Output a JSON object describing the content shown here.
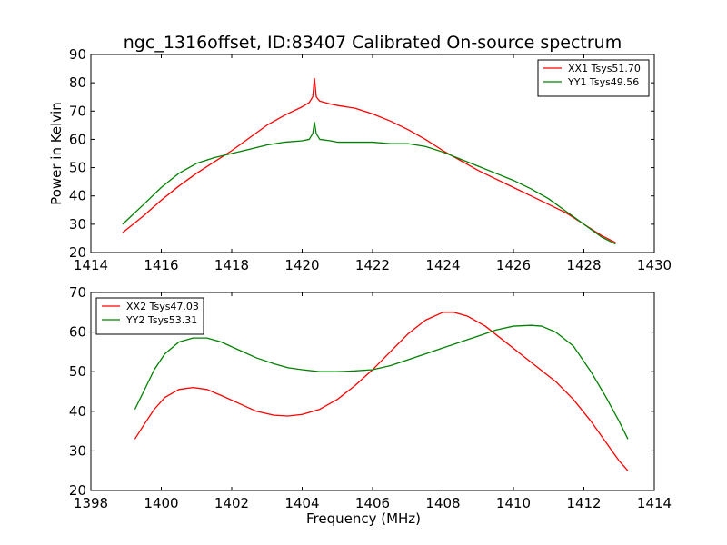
{
  "title": "ngc_1316offset, ID:83407 Calibrated On-source spectrum",
  "chart_data": [
    {
      "type": "line",
      "ylabel": "Power in Kelvin",
      "xlabel": "",
      "xlim": [
        1414,
        1430
      ],
      "ylim": [
        20,
        90
      ],
      "xticks": [
        1414,
        1416,
        1418,
        1420,
        1422,
        1424,
        1426,
        1428,
        1430
      ],
      "yticks": [
        20,
        30,
        40,
        50,
        60,
        70,
        80,
        90
      ],
      "legend_position": "top-right",
      "grid": false,
      "series": [
        {
          "name": "XX1 Tsys51.70",
          "color": "#ff0000",
          "x": [
            1414.9,
            1415.5,
            1416.0,
            1416.5,
            1417.0,
            1417.5,
            1418.0,
            1418.5,
            1419.0,
            1419.5,
            1420.0,
            1420.2,
            1420.3,
            1420.35,
            1420.4,
            1420.5,
            1420.8,
            1421.0,
            1421.5,
            1422.0,
            1422.5,
            1423.0,
            1423.5,
            1424.0,
            1424.5,
            1425.0,
            1425.5,
            1426.0,
            1426.5,
            1427.0,
            1427.5,
            1428.0,
            1428.5,
            1428.9
          ],
          "y": [
            27,
            33,
            38.5,
            43.5,
            48,
            52,
            56,
            60.5,
            65,
            68.5,
            71.5,
            73,
            75,
            81.5,
            75,
            73.5,
            72.5,
            72,
            71,
            69,
            66.5,
            63.5,
            60,
            56,
            52.5,
            49,
            46,
            43,
            40,
            37,
            34,
            30,
            26,
            23.5
          ]
        },
        {
          "name": "YY1 Tsys49.56",
          "color": "#008000",
          "x": [
            1414.9,
            1415.5,
            1416.0,
            1416.5,
            1417.0,
            1417.5,
            1418.0,
            1418.5,
            1419.0,
            1419.5,
            1420.0,
            1420.2,
            1420.3,
            1420.35,
            1420.4,
            1420.5,
            1420.8,
            1421.0,
            1421.5,
            1422.0,
            1422.5,
            1423.0,
            1423.5,
            1424.0,
            1424.5,
            1425.0,
            1425.5,
            1426.0,
            1426.5,
            1427.0,
            1427.5,
            1428.0,
            1428.5,
            1428.9
          ],
          "y": [
            30,
            37,
            43,
            48,
            51.5,
            53.5,
            55,
            56.5,
            58,
            59,
            59.5,
            60,
            62,
            66,
            62,
            60,
            59.5,
            59,
            59,
            59,
            58.5,
            58.5,
            57.5,
            55.5,
            53,
            50.5,
            48,
            45.5,
            42.5,
            39,
            34.5,
            30,
            25.5,
            23
          ]
        }
      ]
    },
    {
      "type": "line",
      "ylabel": "",
      "xlabel": "Frequency (MHz)",
      "xlim": [
        1398,
        1414
      ],
      "ylim": [
        20,
        70
      ],
      "xticks": [
        1398,
        1400,
        1402,
        1404,
        1406,
        1408,
        1410,
        1412,
        1414
      ],
      "yticks": [
        20,
        30,
        40,
        50,
        60,
        70
      ],
      "legend_position": "top-left",
      "grid": false,
      "series": [
        {
          "name": "XX2 Tsys47.03",
          "color": "#ff0000",
          "x": [
            1399.25,
            1399.5,
            1399.8,
            1400.1,
            1400.5,
            1400.9,
            1401.3,
            1401.7,
            1402.2,
            1402.7,
            1403.2,
            1403.6,
            1404.0,
            1404.5,
            1405.0,
            1405.5,
            1406.0,
            1406.5,
            1407.0,
            1407.5,
            1408.0,
            1408.3,
            1408.7,
            1409.2,
            1409.7,
            1410.2,
            1410.7,
            1411.2,
            1411.7,
            1412.2,
            1412.6,
            1413.0,
            1413.25
          ],
          "y": [
            33,
            36.5,
            40.5,
            43.5,
            45.5,
            46,
            45.5,
            44,
            42,
            40,
            39,
            38.8,
            39.2,
            40.5,
            43,
            46.5,
            50.5,
            55,
            59.5,
            63,
            65,
            65,
            64,
            61.5,
            58,
            54.5,
            51,
            47.5,
            43,
            37.5,
            32.5,
            27.5,
            25
          ]
        },
        {
          "name": "YY2 Tsys53.31",
          "color": "#008000",
          "x": [
            1399.25,
            1399.5,
            1399.8,
            1400.1,
            1400.5,
            1400.9,
            1401.3,
            1401.7,
            1402.2,
            1402.7,
            1403.2,
            1403.6,
            1404.0,
            1404.5,
            1405.0,
            1405.5,
            1406.0,
            1406.5,
            1407.0,
            1407.5,
            1408.0,
            1408.5,
            1409.0,
            1409.5,
            1410.0,
            1410.5,
            1410.8,
            1411.2,
            1411.7,
            1412.2,
            1412.6,
            1413.0,
            1413.25
          ],
          "y": [
            40.5,
            45,
            50.5,
            54.5,
            57.5,
            58.5,
            58.5,
            57.5,
            55.5,
            53.5,
            52,
            51,
            50.5,
            50,
            50,
            50.2,
            50.5,
            51.5,
            53,
            54.5,
            56,
            57.5,
            59,
            60.5,
            61.5,
            61.7,
            61.5,
            60,
            56.5,
            50,
            44,
            37.5,
            33
          ]
        }
      ]
    }
  ]
}
